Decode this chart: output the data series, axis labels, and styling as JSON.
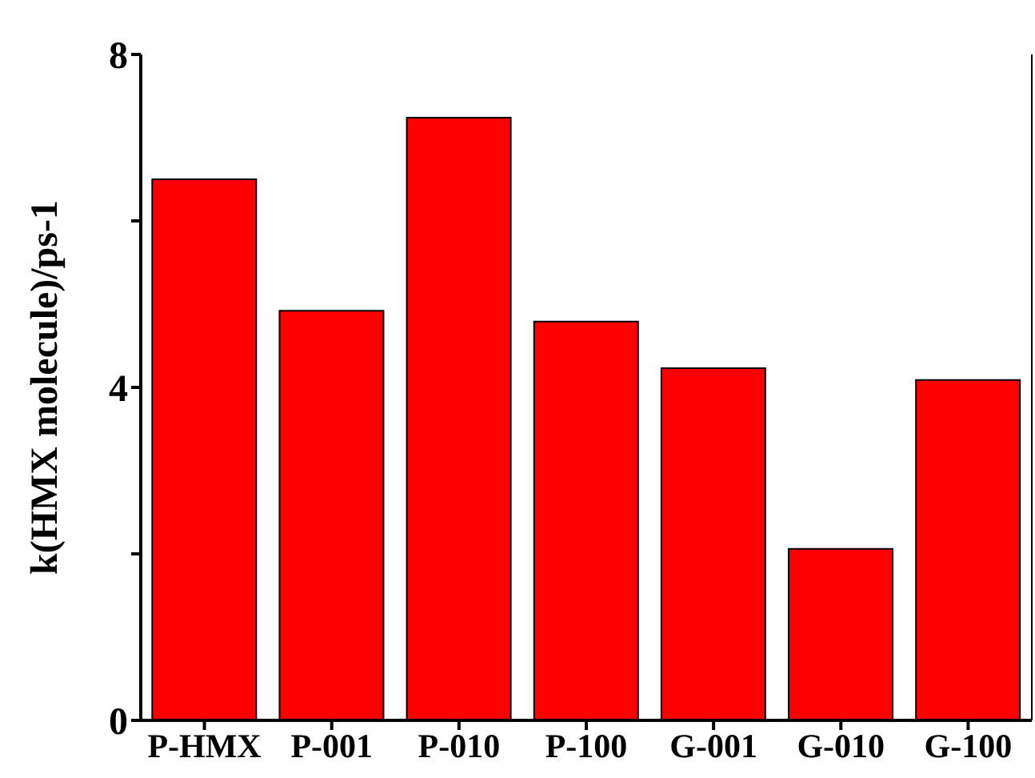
{
  "chart_data": {
    "type": "bar",
    "ylabel": "k(HMX molecule)/ps-1",
    "categories": [
      "P-HMX",
      "P-001",
      "P-010",
      "P-100",
      "G-001",
      "G-010",
      "G-100"
    ],
    "values": [
      6.5,
      4.92,
      7.24,
      4.79,
      4.23,
      2.06,
      4.09
    ],
    "color": "#ff0000",
    "ylim": [
      0,
      8
    ],
    "yticks": [
      0,
      {
        "value": 2,
        "label": null
      },
      4,
      {
        "value": 6,
        "label": null
      },
      8
    ],
    "grid": false
  }
}
